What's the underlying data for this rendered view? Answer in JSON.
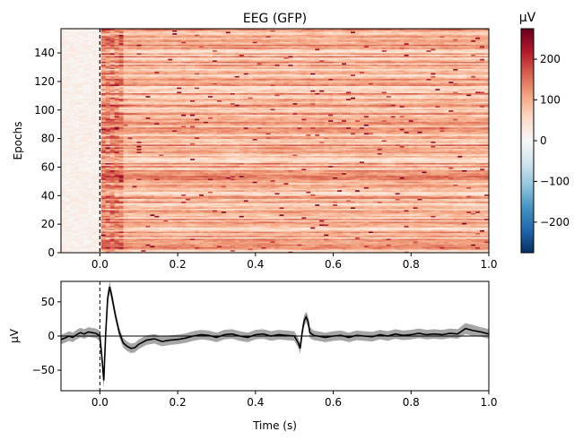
{
  "chart_data": [
    {
      "type": "heatmap",
      "title": "EEG (GFP)",
      "ylabel": "Epochs",
      "xlim": [
        -0.1,
        1.0
      ],
      "ylim": [
        0,
        157
      ],
      "x_ticks": [
        0.0,
        0.2,
        0.4,
        0.6,
        0.8,
        1.0
      ],
      "x_tick_labels": [
        "0.0",
        "0.2",
        "0.4",
        "0.6",
        "0.8",
        "1.0"
      ],
      "y_ticks": [
        0,
        20,
        40,
        60,
        80,
        100,
        120,
        140
      ],
      "y_tick_labels": [
        "0",
        "20",
        "40",
        "60",
        "80",
        "100",
        "120",
        "140"
      ],
      "n_epochs": 157,
      "event_marker_x": 0.0,
      "colormap": "RdBu_r",
      "colorbar": {
        "label": "µV",
        "range": [
          -275,
          275
        ],
        "ticks": [
          -200,
          -100,
          0,
          100,
          200
        ],
        "tick_labels": [
          "−200",
          "−100",
          "0",
          "100",
          "200"
        ]
      },
      "epoch_profile": {
        "baseline_uV": [
          0,
          30
        ],
        "post_stimulus_uV": [
          40,
          150
        ],
        "peak_uV": 270
      }
    },
    {
      "type": "line",
      "xlabel": "Time (s)",
      "ylabel": "µV",
      "xlim": [
        -0.1,
        1.0
      ],
      "ylim": [
        -80,
        80
      ],
      "x_ticks": [
        0.0,
        0.2,
        0.4,
        0.6,
        0.8,
        1.0
      ],
      "x_tick_labels": [
        "0.0",
        "0.2",
        "0.4",
        "0.6",
        "0.8",
        "1.0"
      ],
      "y_ticks": [
        -50,
        0,
        50
      ],
      "y_tick_labels": [
        "−50",
        "0",
        "50"
      ],
      "event_marker_x": 0.0,
      "grid": false,
      "series": [
        {
          "color": "#000000",
          "band_color": "#a6a6a6",
          "x": [
            -0.1,
            -0.09,
            -0.08,
            -0.07,
            -0.06,
            -0.05,
            -0.04,
            -0.03,
            -0.02,
            -0.01,
            0.0,
            0.005,
            0.01,
            0.015,
            0.02,
            0.025,
            0.03,
            0.04,
            0.05,
            0.06,
            0.07,
            0.08,
            0.09,
            0.1,
            0.12,
            0.14,
            0.16,
            0.18,
            0.2,
            0.22,
            0.24,
            0.26,
            0.28,
            0.3,
            0.32,
            0.34,
            0.36,
            0.38,
            0.4,
            0.42,
            0.44,
            0.46,
            0.48,
            0.5,
            0.51,
            0.515,
            0.52,
            0.525,
            0.53,
            0.535,
            0.54,
            0.55,
            0.56,
            0.58,
            0.6,
            0.62,
            0.64,
            0.66,
            0.68,
            0.7,
            0.72,
            0.74,
            0.76,
            0.78,
            0.8,
            0.82,
            0.84,
            0.86,
            0.88,
            0.9,
            0.92,
            0.94,
            0.96,
            0.98,
            1.0
          ],
          "y": [
            -5,
            -3,
            0,
            -2,
            2,
            5,
            3,
            6,
            5,
            4,
            0,
            -30,
            -65,
            5,
            55,
            72,
            60,
            30,
            5,
            -10,
            -15,
            -18,
            -17,
            -12,
            -6,
            -4,
            -8,
            -6,
            -5,
            -3,
            0,
            2,
            1,
            -2,
            2,
            3,
            0,
            -2,
            2,
            3,
            0,
            2,
            1,
            0,
            -10,
            -18,
            5,
            22,
            28,
            22,
            5,
            1,
            0,
            -2,
            0,
            1,
            -2,
            1,
            0,
            -1,
            2,
            0,
            3,
            1,
            2,
            4,
            2,
            3,
            2,
            4,
            3,
            11,
            8,
            6,
            3
          ],
          "band_halfwidth": [
            7,
            7,
            7,
            7,
            7,
            7,
            7,
            7,
            7,
            7,
            8,
            10,
            12,
            12,
            10,
            8,
            8,
            7,
            7,
            7,
            7,
            7,
            7,
            7,
            7,
            7,
            7,
            7,
            7,
            7,
            7,
            7,
            7,
            7,
            7,
            7,
            7,
            7,
            7,
            7,
            7,
            7,
            7,
            7,
            7,
            8,
            8,
            8,
            8,
            8,
            8,
            7,
            7,
            7,
            7,
            7,
            7,
            7,
            7,
            7,
            7,
            7,
            7,
            7,
            7,
            7,
            7,
            7,
            7,
            7,
            7,
            8,
            8,
            7,
            7
          ]
        }
      ]
    }
  ]
}
